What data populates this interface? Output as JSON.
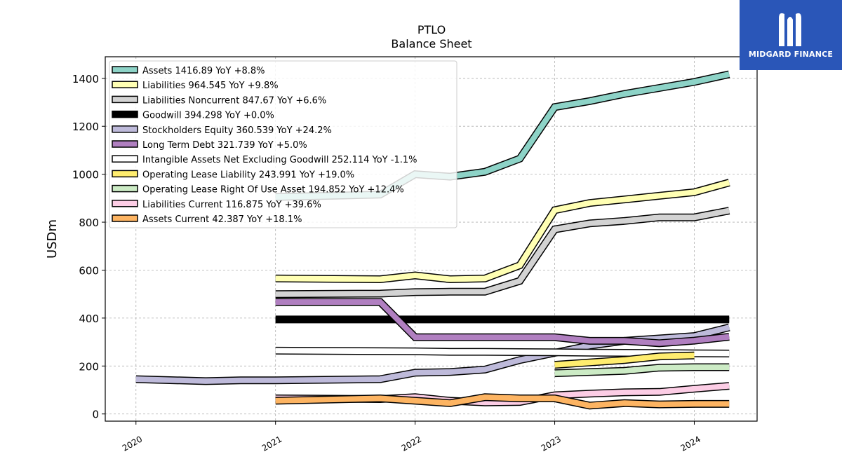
{
  "chart_data": {
    "type": "line",
    "title": "PTLO",
    "subtitle": "Balance  Sheet",
    "ylabel": "USDm",
    "xlabel": "",
    "xlim": [
      2019.78,
      2024.45
    ],
    "ylim": [
      -30,
      1490
    ],
    "x_ticks": [
      "2020",
      "2021",
      "2022",
      "2023",
      "2024"
    ],
    "y_ticks": [
      "0",
      "200",
      "400",
      "600",
      "800",
      "1000",
      "1200",
      "1400"
    ],
    "grid": true,
    "legend_position": "top-left",
    "series": [
      {
        "name": "Assets  1416.89 YoY +8.8%",
        "color": "#8dd3c7",
        "x": [
          2021.0,
          2021.75,
          2022.0,
          2022.25,
          2022.5,
          2022.75,
          2023.0,
          2023.25,
          2023.5,
          2023.75,
          2024.0,
          2024.25
        ],
        "y": [
          905,
          915,
          1000,
          990,
          1010,
          1065,
          1280,
          1305,
          1335,
          1360,
          1385,
          1417
        ]
      },
      {
        "name": "Liabilities  964.545 YoY +9.8%",
        "color": "#ffffb3",
        "x": [
          2021.0,
          2021.75,
          2022.0,
          2022.25,
          2022.5,
          2022.75,
          2023.0,
          2023.25,
          2023.5,
          2023.75,
          2024.0,
          2024.25
        ],
        "y": [
          565,
          562,
          578,
          562,
          565,
          620,
          850,
          880,
          895,
          910,
          925,
          965
        ]
      },
      {
        "name": "Liabilities Noncurrent  847.67 YoY +6.6%",
        "color": "#d3d3d3",
        "x": [
          2021.0,
          2021.75,
          2022.0,
          2022.25,
          2022.5,
          2022.75,
          2023.0,
          2023.25,
          2023.5,
          2023.75,
          2024.0,
          2024.25
        ],
        "y": [
          500,
          502,
          508,
          510,
          510,
          555,
          770,
          795,
          805,
          820,
          820,
          848
        ]
      },
      {
        "name": "Goodwill  394.298 YoY +0.0%",
        "color": "#000000",
        "x": [
          2021.0,
          2021.75,
          2022.0,
          2022.25,
          2022.5,
          2022.75,
          2023.0,
          2023.25,
          2023.5,
          2023.75,
          2024.0,
          2024.25
        ],
        "y": [
          394,
          394,
          394,
          394,
          394,
          394,
          394,
          394,
          394,
          394,
          394,
          394
        ]
      },
      {
        "name": "Stockholders Equity  360.539 YoY +24.2%",
        "color": "#bebada",
        "x": [
          2020.0,
          2020.5,
          2020.75,
          2021.0,
          2021.75,
          2022.0,
          2022.25,
          2022.5,
          2022.75,
          2023.0,
          2023.25,
          2023.5,
          2023.75,
          2024.0,
          2024.25
        ],
        "y": [
          145,
          137,
          140,
          140,
          145,
          172,
          175,
          185,
          225,
          255,
          285,
          305,
          315,
          325,
          361
        ]
      },
      {
        "name": "Long Term Debt  321.739 YoY +5.0%",
        "color": "#b07fc0",
        "x": [
          2021.0,
          2021.75,
          2022.0,
          2022.25,
          2022.5,
          2022.75,
          2023.0,
          2023.25,
          2023.5,
          2023.75,
          2024.0,
          2024.25
        ],
        "y": [
          467,
          467,
          320,
          320,
          320,
          320,
          320,
          305,
          305,
          295,
          306,
          322
        ]
      },
      {
        "name": "Intangible Assets Net Excluding Goodwill  252.114 YoY -1.1%",
        "color": "#ffffff",
        "x": [
          2021.0,
          2021.75,
          2022.0,
          2022.25,
          2022.5,
          2022.75,
          2023.0,
          2023.25,
          2023.5,
          2023.75,
          2024.0,
          2024.25
        ],
        "y": [
          264,
          262,
          261,
          259,
          259,
          258,
          257,
          256,
          255,
          254,
          253,
          252
        ]
      },
      {
        "name": "Operating Lease Liability  243.991 YoY +19.0%",
        "color": "#ffed6f",
        "x": [
          2023.0,
          2023.25,
          2023.5,
          2023.75,
          2024.0
        ],
        "y": [
          205,
          215,
          225,
          240,
          244
        ]
      },
      {
        "name": "Operating Lease Right Of Use Asset  194.852 YoY +12.4%",
        "color": "#ccebc5",
        "x": [
          2023.0,
          2023.25,
          2023.5,
          2023.75,
          2024.0,
          2024.25
        ],
        "y": [
          170,
          175,
          180,
          193,
          195,
          195
        ]
      },
      {
        "name": "Liabilities Current  116.875 YoY +39.6%",
        "color": "#fccde5",
        "x": [
          2021.0,
          2021.75,
          2022.0,
          2022.25,
          2022.5,
          2022.75,
          2023.0,
          2023.25,
          2023.5,
          2023.75,
          2024.0,
          2024.25
        ],
        "y": [
          65,
          62,
          70,
          55,
          48,
          50,
          78,
          85,
          90,
          92,
          105,
          117
        ]
      },
      {
        "name": "Assets Current  42.387 YoY +18.1%",
        "color": "#fdb462",
        "x": [
          2021.0,
          2021.75,
          2022.0,
          2022.25,
          2022.5,
          2022.75,
          2023.0,
          2023.25,
          2023.5,
          2023.75,
          2024.0,
          2024.25
        ],
        "y": [
          55,
          65,
          55,
          45,
          70,
          65,
          65,
          35,
          45,
          40,
          42,
          42
        ]
      }
    ]
  },
  "logo": {
    "text": "MIDGARD FINANCE",
    "background": "#2a56b8"
  }
}
